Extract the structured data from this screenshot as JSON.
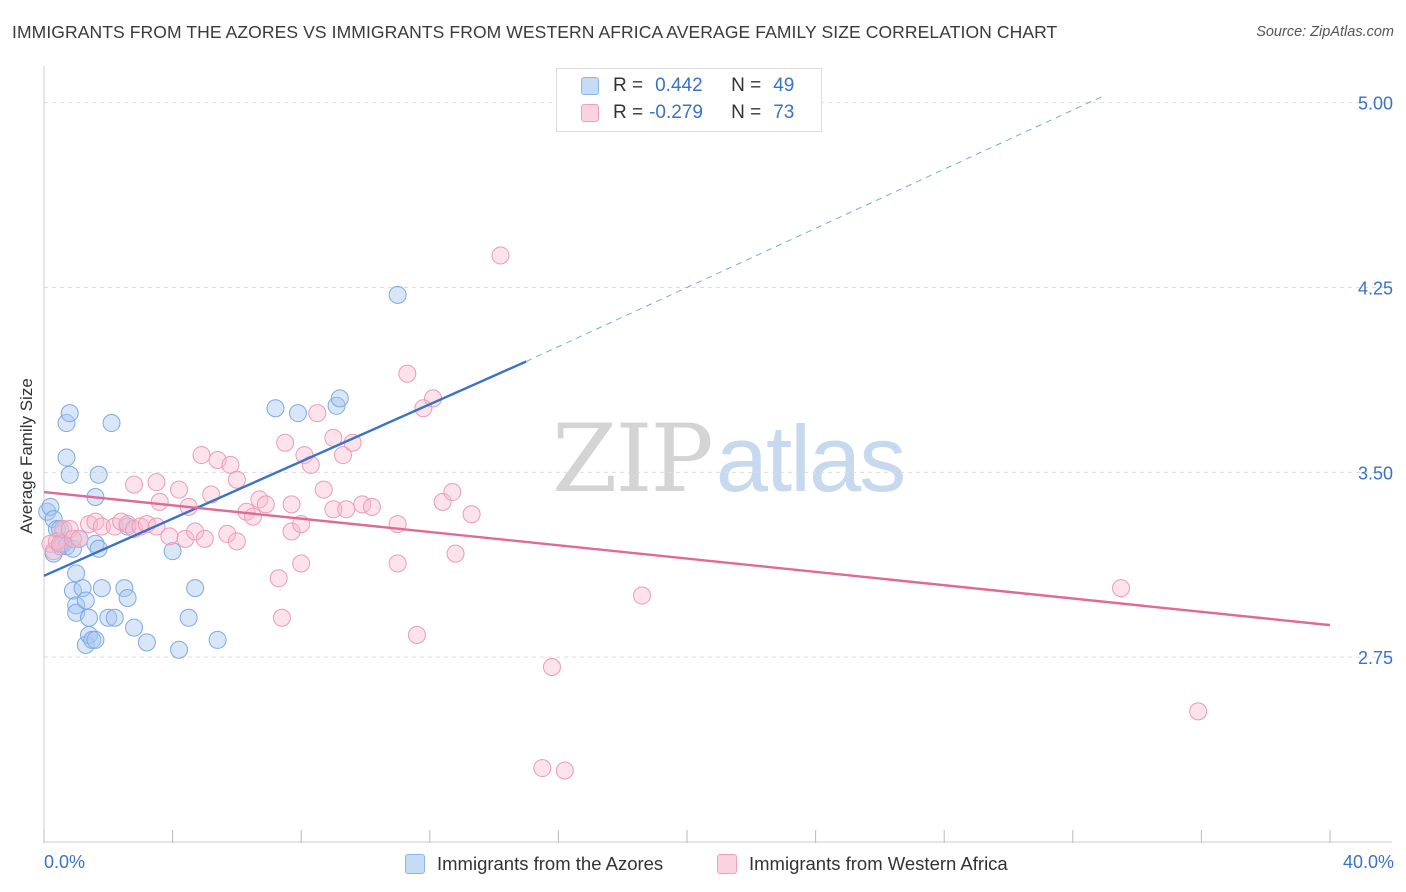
{
  "title": "IMMIGRANTS FROM THE AZORES VS IMMIGRANTS FROM WESTERN AFRICA AVERAGE FAMILY SIZE CORRELATION CHART",
  "source": "Source: ZipAtlas.com",
  "watermark": {
    "zip": "ZIP",
    "atlas": "atlas"
  },
  "legend": {
    "rows": [
      {
        "r_label": "R =",
        "r_value": "0.442",
        "n_label": "N =",
        "n_value": "49",
        "color": "#a9c8f0"
      },
      {
        "r_label": "R =",
        "r_value": "-0.279",
        "n_label": "N =",
        "n_value": "73",
        "color": "#f7b8cc"
      }
    ]
  },
  "bottom_legend": [
    {
      "label": "Immigrants from the Azores",
      "color": "#a9c8f0"
    },
    {
      "label": "Immigrants from Western Africa",
      "color": "#f7b8cc"
    }
  ],
  "x_axis": {
    "min_label": "0.0%",
    "max_label": "40.0%"
  },
  "colors": {
    "blue": "#3a72c8",
    "pink": "#e06a96",
    "blue_fill": "#a9c8f0",
    "pink_fill": "#f7b8cc",
    "grid": "#dddddd"
  },
  "chart_data": {
    "type": "scatter",
    "xlabel": "",
    "ylabel": "Average Family Size",
    "xlim": [
      0,
      40
    ],
    "ylim": [
      2.0,
      5.1
    ],
    "yticks": [
      2.75,
      3.5,
      4.25,
      5.0
    ],
    "ytick_labels": [
      "2.75",
      "3.50",
      "4.25",
      "5.00"
    ],
    "grid": "horizontal dashed",
    "legend_position": "top-center",
    "series": [
      {
        "name": "Immigrants from the Azores",
        "color": "#3a72c8",
        "trend": {
          "x": [
            0,
            15.0
          ],
          "y": [
            3.08,
            3.95
          ],
          "extended_to": [
            33.0,
            5.03
          ]
        },
        "points": [
          [
            0.1,
            3.34
          ],
          [
            0.2,
            3.36
          ],
          [
            0.3,
            3.31
          ],
          [
            0.3,
            3.17
          ],
          [
            0.4,
            3.27
          ],
          [
            0.5,
            3.2
          ],
          [
            0.5,
            3.27
          ],
          [
            0.6,
            3.21
          ],
          [
            0.7,
            3.2
          ],
          [
            0.7,
            3.56
          ],
          [
            0.7,
            3.7
          ],
          [
            0.8,
            3.74
          ],
          [
            0.8,
            3.49
          ],
          [
            0.9,
            3.19
          ],
          [
            0.9,
            3.02
          ],
          [
            1.0,
            2.96
          ],
          [
            1.0,
            2.93
          ],
          [
            1.0,
            3.09
          ],
          [
            1.1,
            3.23
          ],
          [
            1.2,
            3.03
          ],
          [
            1.3,
            2.8
          ],
          [
            1.3,
            2.98
          ],
          [
            1.4,
            2.91
          ],
          [
            1.4,
            2.84
          ],
          [
            1.5,
            2.82
          ],
          [
            1.6,
            2.82
          ],
          [
            1.6,
            3.4
          ],
          [
            1.6,
            3.21
          ],
          [
            1.7,
            3.19
          ],
          [
            1.7,
            3.49
          ],
          [
            1.8,
            3.03
          ],
          [
            2.0,
            2.91
          ],
          [
            2.1,
            3.7
          ],
          [
            2.2,
            2.91
          ],
          [
            2.5,
            3.03
          ],
          [
            2.6,
            2.99
          ],
          [
            2.6,
            3.28
          ],
          [
            2.8,
            2.87
          ],
          [
            3.2,
            2.81
          ],
          [
            4.0,
            3.18
          ],
          [
            4.2,
            2.78
          ],
          [
            4.5,
            2.91
          ],
          [
            4.7,
            3.03
          ],
          [
            5.4,
            2.82
          ],
          [
            7.2,
            3.76
          ],
          [
            7.9,
            3.74
          ],
          [
            9.1,
            3.77
          ],
          [
            9.2,
            3.8
          ],
          [
            11.0,
            4.22
          ]
        ]
      },
      {
        "name": "Immigrants from Western Africa",
        "color": "#e06a96",
        "trend": {
          "x": [
            0,
            40.0
          ],
          "y": [
            3.42,
            2.88
          ]
        },
        "points": [
          [
            0.2,
            3.21
          ],
          [
            0.3,
            3.18
          ],
          [
            0.4,
            3.22
          ],
          [
            0.5,
            3.21
          ],
          [
            0.6,
            3.27
          ],
          [
            0.8,
            3.27
          ],
          [
            0.9,
            3.23
          ],
          [
            1.1,
            3.23
          ],
          [
            1.4,
            3.29
          ],
          [
            1.6,
            3.3
          ],
          [
            1.8,
            3.28
          ],
          [
            2.2,
            3.28
          ],
          [
            2.4,
            3.3
          ],
          [
            2.6,
            3.29
          ],
          [
            2.8,
            3.27
          ],
          [
            2.8,
            3.45
          ],
          [
            3.0,
            3.28
          ],
          [
            3.2,
            3.29
          ],
          [
            3.5,
            3.28
          ],
          [
            3.5,
            3.46
          ],
          [
            3.6,
            3.38
          ],
          [
            3.9,
            3.24
          ],
          [
            4.2,
            3.43
          ],
          [
            4.4,
            3.23
          ],
          [
            4.5,
            3.36
          ],
          [
            4.7,
            3.26
          ],
          [
            4.9,
            3.57
          ],
          [
            5.0,
            3.23
          ],
          [
            5.2,
            3.41
          ],
          [
            5.4,
            3.55
          ],
          [
            5.7,
            3.25
          ],
          [
            5.8,
            3.53
          ],
          [
            6.0,
            3.47
          ],
          [
            6.0,
            3.22
          ],
          [
            6.3,
            3.34
          ],
          [
            6.5,
            3.32
          ],
          [
            6.7,
            3.39
          ],
          [
            6.9,
            3.37
          ],
          [
            7.3,
            3.07
          ],
          [
            7.4,
            2.91
          ],
          [
            7.5,
            3.62
          ],
          [
            7.7,
            3.37
          ],
          [
            7.7,
            3.26
          ],
          [
            8.0,
            3.29
          ],
          [
            8.0,
            3.13
          ],
          [
            8.1,
            3.57
          ],
          [
            8.3,
            3.53
          ],
          [
            8.5,
            3.74
          ],
          [
            8.7,
            3.43
          ],
          [
            9.0,
            3.64
          ],
          [
            9.0,
            3.35
          ],
          [
            9.3,
            3.57
          ],
          [
            9.4,
            3.35
          ],
          [
            9.6,
            3.62
          ],
          [
            9.9,
            3.37
          ],
          [
            10.2,
            3.36
          ],
          [
            11.0,
            3.13
          ],
          [
            11.0,
            3.29
          ],
          [
            11.3,
            3.9
          ],
          [
            11.6,
            2.84
          ],
          [
            11.8,
            3.76
          ],
          [
            12.1,
            3.8
          ],
          [
            12.4,
            3.38
          ],
          [
            12.7,
            3.42
          ],
          [
            12.8,
            3.17
          ],
          [
            13.3,
            3.33
          ],
          [
            14.2,
            4.38
          ],
          [
            15.5,
            2.3
          ],
          [
            15.8,
            2.71
          ],
          [
            16.2,
            2.29
          ],
          [
            18.6,
            3.0
          ],
          [
            33.5,
            3.03
          ],
          [
            35.9,
            2.53
          ]
        ]
      }
    ]
  }
}
